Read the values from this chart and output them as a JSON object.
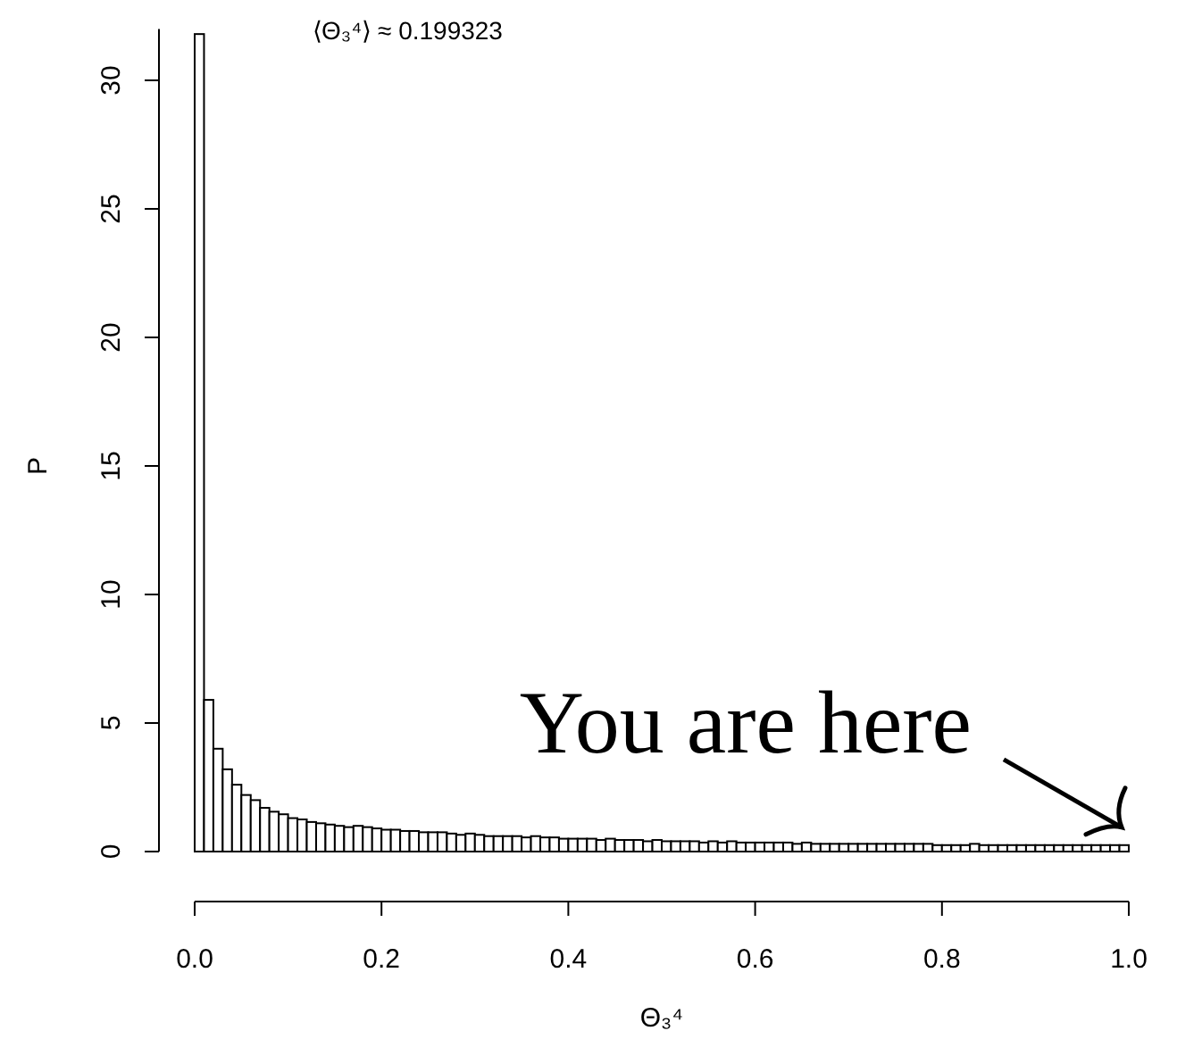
{
  "chart_data": {
    "type": "histogram",
    "xlabel": "Θ₃⁴",
    "ylabel": "P",
    "bins": [
      0,
      0.01,
      0.02,
      0.03,
      0.04,
      0.05,
      0.06,
      0.07,
      0.08,
      0.09,
      0.1,
      0.11,
      0.12,
      0.13,
      0.14,
      0.15,
      0.16,
      0.17,
      0.18,
      0.19,
      0.2,
      0.21,
      0.22,
      0.23,
      0.24,
      0.25,
      0.26,
      0.27,
      0.28,
      0.29,
      0.3,
      0.31,
      0.32,
      0.33,
      0.34,
      0.35,
      0.36,
      0.37,
      0.38,
      0.39,
      0.4,
      0.41,
      0.42,
      0.43,
      0.44,
      0.45,
      0.46,
      0.47,
      0.48,
      0.49,
      0.5,
      0.51,
      0.52,
      0.53,
      0.54,
      0.55,
      0.56,
      0.57,
      0.58,
      0.59,
      0.6,
      0.61,
      0.62,
      0.63,
      0.64,
      0.65,
      0.66,
      0.67,
      0.68,
      0.69,
      0.7,
      0.71,
      0.72,
      0.73,
      0.74,
      0.75,
      0.76,
      0.77,
      0.78,
      0.79,
      0.8,
      0.81,
      0.82,
      0.83,
      0.84,
      0.85,
      0.86,
      0.87,
      0.88,
      0.89,
      0.9,
      0.91,
      0.92,
      0.93,
      0.94,
      0.95,
      0.96,
      0.97,
      0.98,
      0.99,
      1.0
    ],
    "values": [
      31.8,
      5.9,
      4.0,
      3.2,
      2.6,
      2.2,
      2.0,
      1.7,
      1.55,
      1.45,
      1.3,
      1.25,
      1.15,
      1.1,
      1.05,
      1.0,
      0.95,
      1.0,
      0.95,
      0.9,
      0.85,
      0.85,
      0.8,
      0.8,
      0.75,
      0.75,
      0.75,
      0.7,
      0.65,
      0.7,
      0.65,
      0.6,
      0.6,
      0.6,
      0.6,
      0.55,
      0.6,
      0.55,
      0.55,
      0.5,
      0.5,
      0.5,
      0.5,
      0.45,
      0.5,
      0.45,
      0.45,
      0.45,
      0.4,
      0.45,
      0.4,
      0.4,
      0.4,
      0.4,
      0.35,
      0.4,
      0.35,
      0.4,
      0.35,
      0.35,
      0.35,
      0.35,
      0.35,
      0.35,
      0.3,
      0.35,
      0.3,
      0.3,
      0.3,
      0.3,
      0.3,
      0.3,
      0.3,
      0.3,
      0.3,
      0.3,
      0.3,
      0.3,
      0.3,
      0.25,
      0.25,
      0.25,
      0.25,
      0.3,
      0.25,
      0.25,
      0.25,
      0.25,
      0.25,
      0.25,
      0.25,
      0.25,
      0.25,
      0.25,
      0.25,
      0.25,
      0.25,
      0.25,
      0.25,
      0.25
    ],
    "color": "#ffffff",
    "xlim": [
      0,
      1
    ],
    "xticks": [
      {
        "value": 0,
        "label": "0.0"
      },
      0.2,
      0.4,
      0.6,
      0.8,
      {
        "value": 1,
        "label": "1.0"
      }
    ],
    "ylim": [
      0,
      32
    ],
    "yticks": [
      0,
      5,
      10,
      15,
      20,
      25,
      30
    ],
    "grid": false,
    "annotations": [
      "⟨Θ₃⁴⟩ ≈ 0.199323",
      {
        "text": "You are here",
        "x": 1.0,
        "y": 0.25
      }
    ]
  }
}
